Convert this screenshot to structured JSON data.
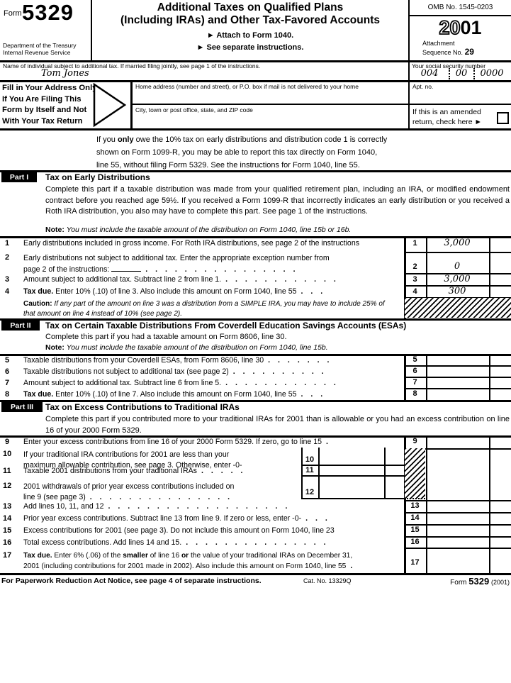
{
  "header": {
    "form_word": "Form",
    "form_number": "5329",
    "title_line1": "Additional Taxes on Qualified Plans",
    "title_line2": "(Including IRAs) and Other Tax-Favored Accounts",
    "attach_note": "► Attach to Form 1040.",
    "instructions_note": "► See separate instructions.",
    "omb": "OMB No. 1545-0203",
    "year_outline": "20",
    "year_solid": "01",
    "attachment_label": "Attachment",
    "sequence_label": "Sequence No.",
    "sequence_no": "29",
    "dept1": "Department of the Treasury",
    "dept2": "Internal Revenue Service"
  },
  "identity": {
    "name_label": "Name of individual subject to additional tax. If married filing jointly, see page 1 of the instructions.",
    "name_value": "Tom Jones",
    "ssn_label": "Your social security number",
    "ssn": [
      "004",
      "00",
      "0000"
    ],
    "address_lines": [
      "Fill in Your Address Only",
      "If You Are Filing This",
      "Form by Itself and Not",
      "With Your Tax Return"
    ],
    "home_address_label": "Home address (number and street), or P.O. box if mail is not delivered to your home",
    "apt_label": "Apt. no.",
    "city_label": "City, town or post office, state, and ZIP code",
    "amended_line1": "If this is an amended",
    "amended_line2": "return, check here ►"
  },
  "intro": {
    "lines": [
      "If you <b>only</b> owe the 10% tax on early distributions and distribution code 1 is correctly",
      "shown on Form 1099-R, you may be able to report this tax directly on Form 1040,",
      "line 55, without filing Form 5329. See the instructions for Form 1040, line 55."
    ]
  },
  "part1": {
    "badge": "Part I",
    "title": "Tax on Early Distributions",
    "desc": "Complete this part if a taxable distribution was made from your qualified retirement plan, including an IRA, or modified endowment contract before you reached age 59½. If you received a Form 1099-R that incorrectly indicates an early distribution or you received a Roth IRA distribution, you also may have to complete this part. See page 1 of the instructions.",
    "note_html": "<b>Note:</b> <i>You must include the taxable amount of the distribution on Form 1040, line 15b or 16b.</i>",
    "rows": [
      {
        "num": "1",
        "label_html": "Early distributions included in gross income. For Roth IRA distributions, see page 2 of the instructions",
        "leader": "",
        "value": "3,000"
      },
      {
        "num": "2",
        "label_html": "Early distributions not subject to additional tax. Enter the appropriate exception number from<br>page 2 of the instructions: <span class='blank'></span>",
        "leader": ". . . . . . . . . . . . . . . .",
        "value": "0"
      },
      {
        "num": "3",
        "label_html": "Amount subject to additional tax. Subtract line 2 from line 1.",
        "leader": ". . . . . . . . . . . .",
        "value": "3,000"
      },
      {
        "num": "4",
        "label_html": "<b>Tax due.</b> Enter 10% (.10) of line 3. Also include this amount on Form 1040, line 55",
        "leader": ". . .",
        "value": "300"
      }
    ],
    "caution_html": "<b>Caution:</b> <i>If any part of the amount on line 3 was a distribution from a SIMPLE IRA, you may have to include 25% of that amount on line 4 instead of 10% (see page 2).</i>"
  },
  "part2": {
    "badge": "Part II",
    "title": "Tax on Certain Taxable Distributions From Coverdell Education Savings Accounts (ESAs)",
    "desc": "Complete this part if you had a taxable amount on Form 8606, line 30.",
    "note_html": "<b>Note:</b> <i>You must include the taxable amount of the distribution on Form 1040, line 15b.</i>",
    "rows": [
      {
        "num": "5",
        "label_html": "Taxable distributions from your Coverdell ESAs, from Form 8606, line 30",
        "leader": ". . . . . . .",
        "value": ""
      },
      {
        "num": "6",
        "label_html": "Taxable distributions not subject to additional tax (see page 2)",
        "leader": ". . . . . . . . . .",
        "value": ""
      },
      {
        "num": "7",
        "label_html": "Amount subject to additional tax. Subtract line 6 from line 5.",
        "leader": ". . . . . . . . . . . .",
        "value": ""
      },
      {
        "num": "8",
        "label_html": "<b>Tax due.</b> Enter 10% (.10) of line 7. Also include this amount on Form 1040, line 55",
        "leader": ". . .",
        "value": ""
      }
    ]
  },
  "part3": {
    "badge": "Part III",
    "title": "Tax on Excess Contributions to Traditional IRAs",
    "desc": "Complete this part if you contributed more to your traditional IRAs for 2001 than is allowable or you had an excess contribution on line 16 of your 2000 Form 5329.",
    "row9": {
      "num": "9",
      "label_html": "Enter your excess contributions from line 16 of your 2000 Form 5329. If zero, go to line 15",
      "leader": ".",
      "value": ""
    },
    "row10": {
      "num": "10",
      "label_html": "If your traditional IRA contributions for 2001 are less than your<br>maximum allowable contribution, see page 3. Otherwise, enter -0-",
      "leader": "",
      "value": ""
    },
    "row11": {
      "num": "11",
      "label_html": "Taxable 2001 distributions from your traditional IRAs",
      "leader": ". . . . .",
      "value": ""
    },
    "row12": {
      "num": "12",
      "label_html": "2001 withdrawals of prior year excess contributions included on<br>line 9 (see page 3)",
      "leader": ". . . . . . . . . . . . . . .",
      "value": ""
    },
    "row13": {
      "num": "13",
      "label_html": "Add lines 10, 11, and 12",
      "leader": ". . . . . . . . . . . . . . . . . . .",
      "value": ""
    },
    "row14": {
      "num": "14",
      "label_html": "Prior year excess contributions. Subtract line 13 from line 9. If zero or less, enter -0-",
      "leader": ". . .",
      "value": ""
    },
    "row15": {
      "num": "15",
      "label_html": "Excess contributions for 2001 (see page 3). Do not include this amount on Form 1040, line 23",
      "leader": "",
      "value": ""
    },
    "row16": {
      "num": "16",
      "label_html": "Total excess contributions. Add lines 14 and 15.",
      "leader": ". . . . . . . . . . . . . . .",
      "value": ""
    },
    "row17": {
      "num": "17",
      "label_html": "<b>Tax due.</b> Enter 6% (.06) of the <b>smaller</b> of line 16 <b>or</b> the value of your traditional IRAs on December 31,<br>2001 (including contributions for 2001 made in 2002). Also include this amount on Form 1040, line 55",
      "leader": ".",
      "value": ""
    }
  },
  "footer": {
    "notice": "For Paperwork Reduction Act Notice, see page 4 of separate instructions.",
    "cat": "Cat. No. 13329Q",
    "form_word": "Form",
    "form_number": "5329",
    "year": "(2001)"
  }
}
